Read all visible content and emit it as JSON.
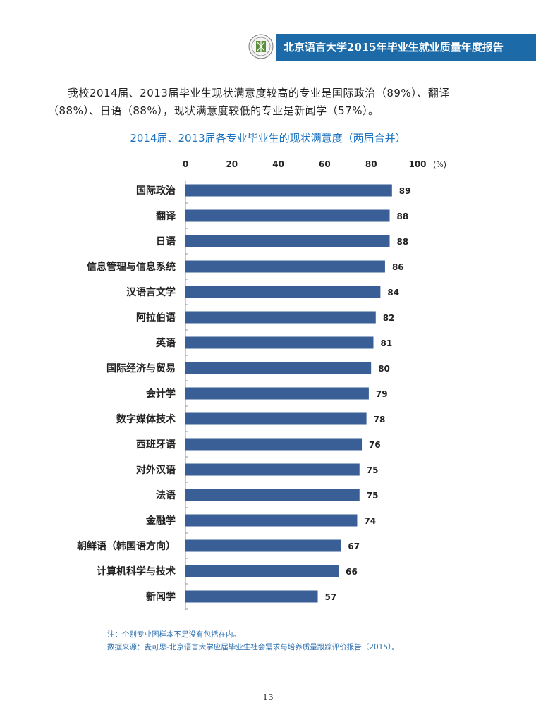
{
  "header": {
    "title": "北京语言大学2015年毕业生就业质量年度报告",
    "band_color": "#1c6aa8"
  },
  "intro_text": "我校2014届、2013届毕业生现状满意度较高的专业是国际政治（89%）、翻译（88%）、日语（88%），现状满意度较低的专业是新闻学（57%）。",
  "chart_data": {
    "type": "bar",
    "orientation": "horizontal",
    "title": "2014届、2013届各专业毕业生的现状满意度（两届合并）",
    "unit_label": "(%)",
    "xlim": [
      0,
      100
    ],
    "xticks": [
      "0",
      "20",
      "40",
      "60",
      "80",
      "100"
    ],
    "categories": [
      "国际政治",
      "翻译",
      "日语",
      "信息管理与信息系统",
      "汉语言文学",
      "阿拉伯语",
      "英语",
      "国际经济与贸易",
      "会计学",
      "数字媒体技术",
      "西班牙语",
      "对外汉语",
      "法语",
      "金融学",
      "朝鲜语（韩国语方向）",
      "计算机科学与技术",
      "新闻学"
    ],
    "values": [
      89,
      88,
      88,
      86,
      84,
      82,
      81,
      80,
      79,
      78,
      76,
      75,
      75,
      74,
      67,
      66,
      57
    ],
    "bar_color": "#3a5f96",
    "axis_position": "top",
    "grid": false
  },
  "notes": {
    "note": "注：个别专业因样本不足没有包括在内。",
    "source": "数据来源：麦可思-北京语言大学应届毕业生社会需求与培养质量跟踪评价报告（2015）。"
  },
  "page_number": "13"
}
